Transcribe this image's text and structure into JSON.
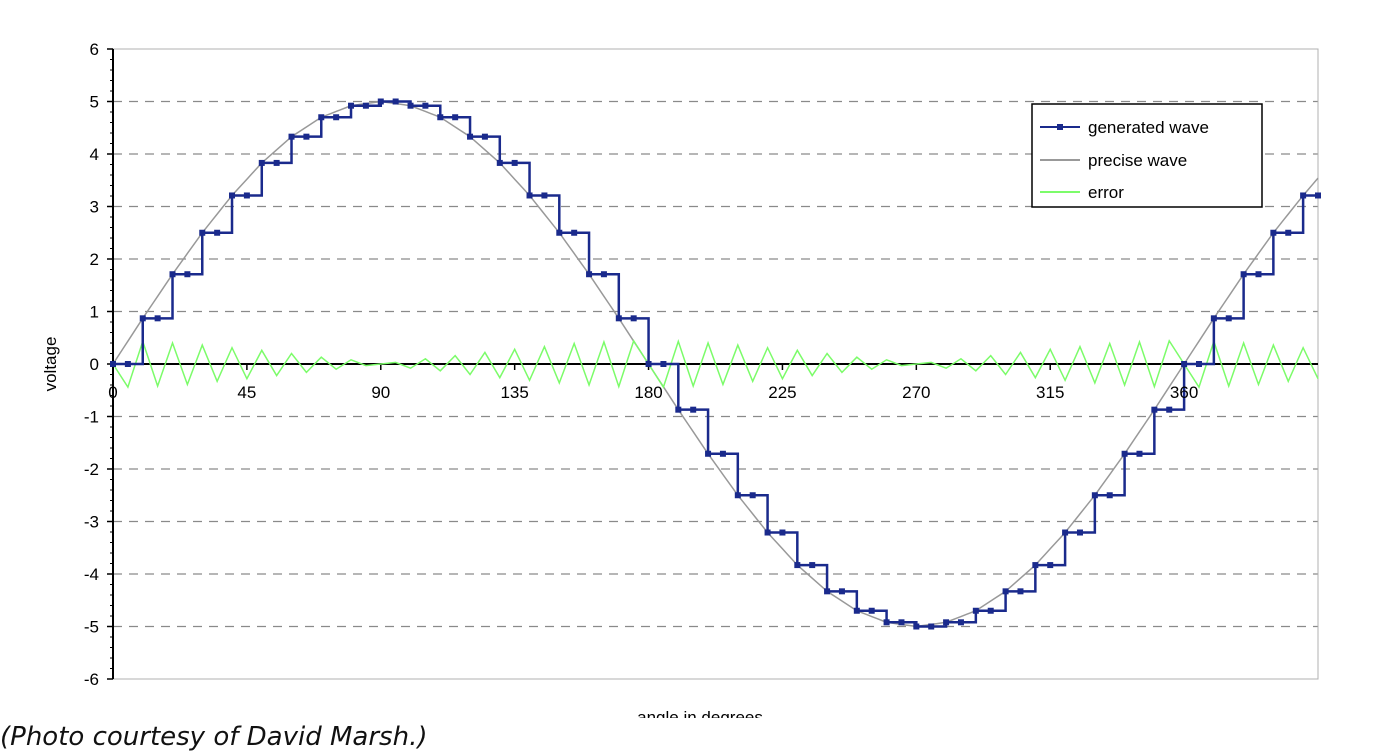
{
  "chart_data": {
    "type": "line",
    "xlabel": "angle in degrees",
    "ylabel": "voltage",
    "xlim": [
      0,
      405
    ],
    "ylim": [
      -6,
      6
    ],
    "x_ticks": [
      0,
      45,
      90,
      135,
      180,
      225,
      270,
      315,
      360
    ],
    "x_tick_labels": [
      "0",
      "45",
      "90",
      "135",
      "180",
      "225",
      "270",
      "315",
      "360"
    ],
    "y_ticks": [
      6,
      5,
      4,
      3,
      2,
      1,
      0,
      -1,
      -2,
      -3,
      -4,
      -5,
      -6
    ],
    "y_tick_labels": [
      "6",
      "5",
      "4",
      "3",
      "2",
      "1",
      "0",
      "-1",
      "-2",
      "-3",
      "-4",
      "-5",
      "-6"
    ],
    "grid": "horizontal dashed",
    "legend_position": "top-right",
    "step_degrees": 10,
    "amplitude": 5,
    "series": [
      {
        "name": "generated wave",
        "color": "#1a2a8c",
        "style": "step with markers",
        "x": [
          0,
          5,
          10,
          15,
          20,
          25,
          30,
          35,
          40,
          45,
          50,
          55,
          60,
          65,
          70,
          75,
          80,
          85,
          90,
          95,
          100,
          105,
          110,
          115,
          120,
          125,
          130,
          135,
          140,
          145,
          150,
          155,
          160,
          165,
          170,
          175,
          180,
          185,
          190,
          195,
          200,
          205,
          210,
          215,
          220,
          225,
          230,
          235,
          240,
          245,
          250,
          255,
          260,
          265,
          270,
          275,
          280,
          285,
          290,
          295,
          300,
          305,
          310,
          315,
          320,
          325,
          330,
          335,
          340,
          345,
          350,
          355,
          360,
          365,
          370,
          375,
          380,
          385,
          390,
          395,
          400,
          405
        ],
        "values": [
          0,
          0,
          0.87,
          0.87,
          1.71,
          1.71,
          2.5,
          2.5,
          3.21,
          3.21,
          3.83,
          3.83,
          4.33,
          4.33,
          4.7,
          4.7,
          4.92,
          4.92,
          5,
          5,
          4.92,
          4.92,
          4.7,
          4.7,
          4.33,
          4.33,
          3.83,
          3.83,
          3.21,
          3.21,
          2.5,
          2.5,
          1.71,
          1.71,
          0.87,
          0.87,
          0,
          0,
          -0.87,
          -0.87,
          -1.71,
          -1.71,
          -2.5,
          -2.5,
          -3.21,
          -3.21,
          -3.83,
          -3.83,
          -4.33,
          -4.33,
          -4.7,
          -4.7,
          -4.92,
          -4.92,
          -5,
          -5,
          -4.92,
          -4.92,
          -4.7,
          -4.7,
          -4.33,
          -4.33,
          -3.83,
          -3.83,
          -3.21,
          -3.21,
          -2.5,
          -2.5,
          -1.71,
          -1.71,
          -0.87,
          -0.87,
          0,
          0,
          0.87,
          0.87,
          1.71,
          1.71,
          2.5,
          2.5,
          3.21,
          3.21
        ]
      },
      {
        "name": "precise wave",
        "color": "#999999",
        "style": "line",
        "x": [
          0,
          10,
          20,
          30,
          40,
          50,
          60,
          70,
          80,
          90,
          100,
          110,
          120,
          130,
          140,
          150,
          160,
          170,
          180,
          190,
          200,
          210,
          220,
          230,
          240,
          250,
          260,
          270,
          280,
          290,
          300,
          310,
          320,
          330,
          340,
          350,
          360,
          370,
          380,
          390,
          400,
          405
        ],
        "values": [
          0,
          0.87,
          1.71,
          2.5,
          3.21,
          3.83,
          4.33,
          4.7,
          4.92,
          5,
          4.92,
          4.7,
          4.33,
          3.83,
          3.21,
          2.5,
          1.71,
          0.87,
          0,
          -0.87,
          -1.71,
          -2.5,
          -3.21,
          -3.83,
          -4.33,
          -4.7,
          -4.92,
          -5,
          -4.92,
          -4.7,
          -4.33,
          -3.83,
          -3.21,
          -2.5,
          -1.71,
          -0.87,
          0,
          0.87,
          1.71,
          2.5,
          3.21,
          3.54
        ]
      },
      {
        "name": "error",
        "color": "#7CFC6A",
        "style": "line",
        "x": [
          0,
          5,
          10,
          15,
          20,
          25,
          30,
          35,
          40,
          45,
          50,
          55,
          60,
          65,
          70,
          75,
          80,
          85,
          90,
          95,
          100,
          105,
          110,
          115,
          120,
          125,
          130,
          135,
          140,
          145,
          150,
          155,
          160,
          165,
          170,
          175,
          180,
          185,
          190,
          195,
          200,
          205,
          210,
          215,
          220,
          225,
          230,
          235,
          240,
          245,
          250,
          255,
          260,
          265,
          270,
          275,
          280,
          285,
          290,
          295,
          300,
          305,
          310,
          315,
          320,
          325,
          330,
          335,
          340,
          345,
          350,
          355,
          360,
          365,
          370,
          375,
          380,
          385,
          390,
          395,
          400,
          405
        ],
        "values": [
          0,
          -0.44,
          0.43,
          -0.42,
          0.4,
          -0.39,
          0.36,
          -0.33,
          0.31,
          -0.28,
          0.26,
          -0.22,
          0.2,
          -0.16,
          0.13,
          -0.1,
          0.08,
          -0.03,
          0,
          0.03,
          -0.08,
          0.1,
          -0.13,
          0.16,
          -0.2,
          0.22,
          -0.26,
          0.28,
          -0.31,
          0.33,
          -0.36,
          0.39,
          -0.4,
          0.42,
          -0.43,
          0.44,
          0,
          -0.44,
          0.43,
          -0.42,
          0.4,
          -0.39,
          0.36,
          -0.33,
          0.31,
          -0.28,
          0.26,
          -0.22,
          0.2,
          -0.16,
          0.13,
          -0.1,
          0.08,
          -0.03,
          0,
          0.03,
          -0.08,
          0.1,
          -0.13,
          0.16,
          -0.2,
          0.22,
          -0.26,
          0.28,
          -0.31,
          0.33,
          -0.36,
          0.39,
          -0.4,
          0.42,
          -0.43,
          0.44,
          0,
          -0.44,
          0.43,
          -0.42,
          0.4,
          -0.39,
          0.36,
          -0.33,
          0.31,
          -0.28
        ]
      }
    ]
  },
  "caption": "(Photo courtesy of David Marsh.)"
}
